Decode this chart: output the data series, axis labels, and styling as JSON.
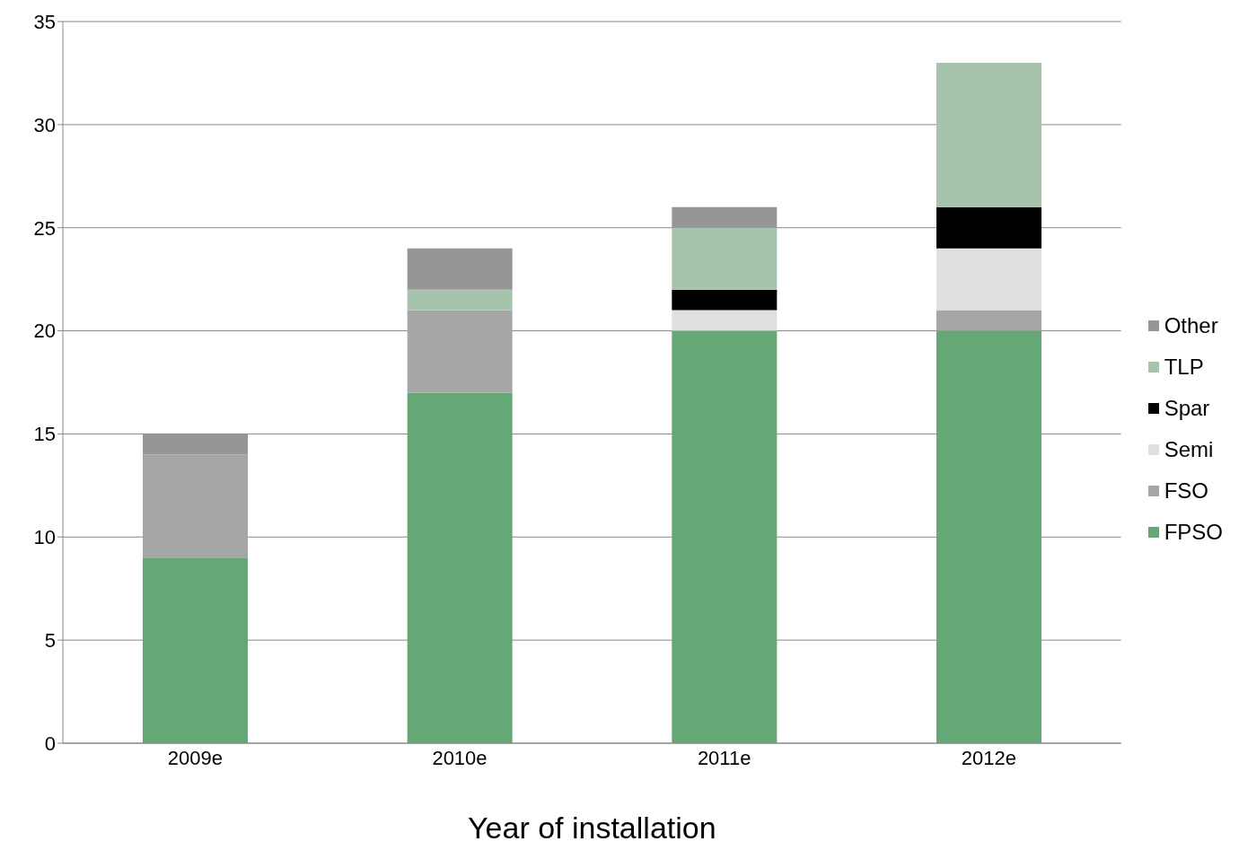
{
  "chart_data": {
    "type": "bar",
    "stacked": true,
    "xlabel": "Year of installation",
    "categories": [
      "2009e",
      "2010e",
      "2011e",
      "2012e"
    ],
    "series": [
      {
        "name": "FPSO",
        "color": "#63a875",
        "values": [
          9,
          17,
          20,
          20
        ]
      },
      {
        "name": "FSO",
        "color": "#a6a6a6",
        "values": [
          5,
          4,
          0,
          1
        ]
      },
      {
        "name": "Semi",
        "color": "#e0e0e0",
        "values": [
          0,
          0,
          1,
          3
        ]
      },
      {
        "name": "Spar",
        "color": "#000000",
        "values": [
          0,
          0,
          1,
          2
        ]
      },
      {
        "name": "TLP",
        "color": "#a6c4ab",
        "values": [
          0,
          1,
          3,
          7
        ]
      },
      {
        "name": "Other",
        "color": "#969696",
        "values": [
          1,
          2,
          1,
          0
        ]
      }
    ],
    "ylim": [
      0,
      35
    ],
    "yticks": [
      0,
      5,
      10,
      15,
      20,
      25,
      30,
      35
    ],
    "grid": "y",
    "legend": "right"
  }
}
